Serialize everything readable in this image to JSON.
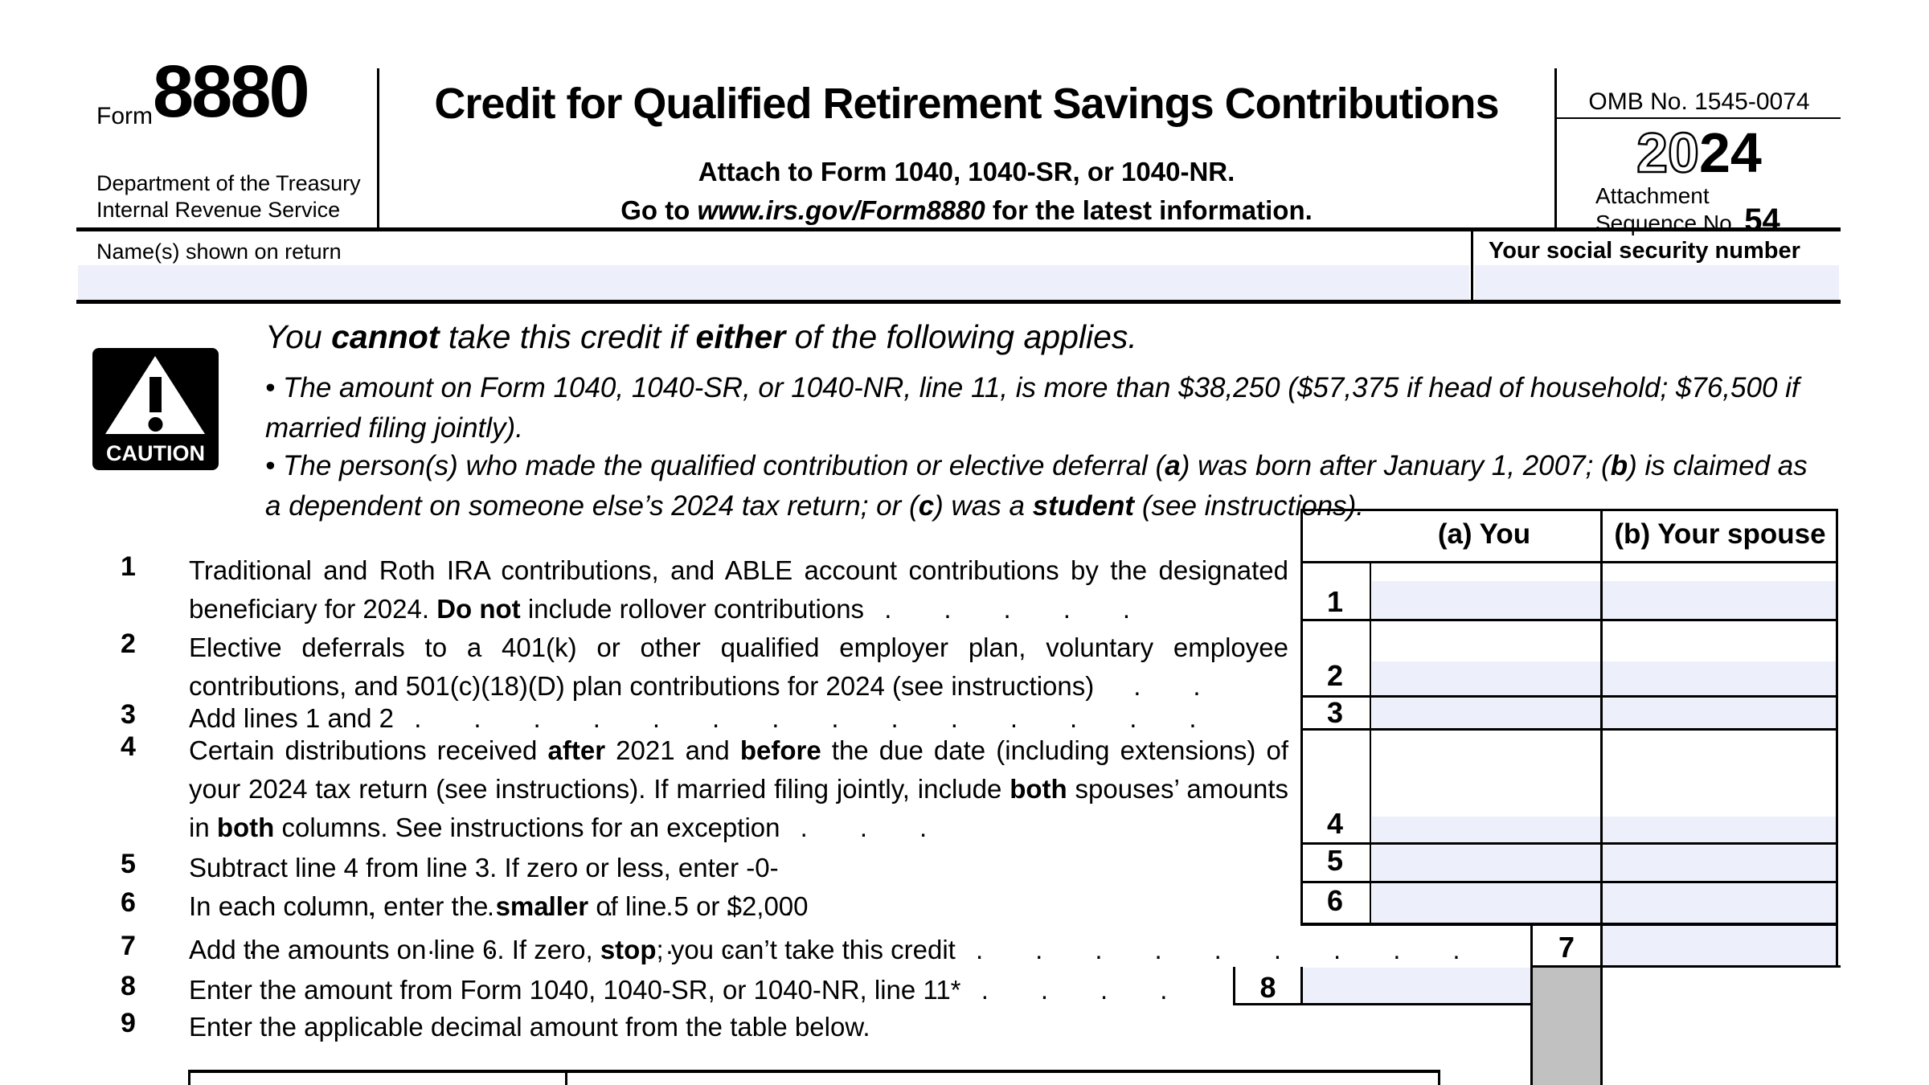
{
  "header": {
    "form_label": "Form",
    "form_number": "8880",
    "agency_line1": "Department of the Treasury",
    "agency_line2": "Internal Revenue Service",
    "title": "Credit for Qualified Retirement Savings Contributions",
    "attach_line": "Attach to Form 1040, 1040-SR, or 1040-NR.",
    "goto_prefix": "Go to ",
    "goto_url": "www.irs.gov/Form8880",
    "goto_suffix": " for the latest information.",
    "omb": "OMB No. 1545-0074",
    "year_outline": "20",
    "year_bold": "24",
    "attachment_label": "Attachment",
    "sequence_label": "Sequence No. ",
    "sequence_number": "54"
  },
  "name_row": {
    "name_label": "Name(s) shown on return",
    "ssn_label": "Your social security number"
  },
  "caution": {
    "icon_label": "CAUTION",
    "heading": [
      {
        "t": "You "
      },
      {
        "t": "cannot",
        "b": true
      },
      {
        "t": " take this credit if "
      },
      {
        "t": "either",
        "b": true
      },
      {
        "t": " of the following applies."
      }
    ],
    "bullet1": [
      {
        "t": "• The amount on Form 1040, 1040-SR, or 1040-NR, line 11, is more than $38,250 ($57,375 if head of household; $76,500 if married filing jointly)."
      }
    ],
    "bullet2": [
      {
        "t": "• The person(s) who made the qualified contribution or elective deferral ("
      },
      {
        "t": "a",
        "b": true
      },
      {
        "t": ") was born after January 1, 2007; ("
      },
      {
        "t": "b",
        "b": true
      },
      {
        "t": ") is claimed as a dependent on someone else’s 2024 tax return; or ("
      },
      {
        "t": "c",
        "b": true
      },
      {
        "t": ") was a "
      },
      {
        "t": "student",
        "b": true
      },
      {
        "t": " (see instructions)."
      }
    ]
  },
  "table": {
    "col_a": "(a) You",
    "col_b": "(b) Your spouse",
    "box_numbers": {
      "r1": "1",
      "r2": "2",
      "r3": "3",
      "r4": "4",
      "r5": "5",
      "r6": "6",
      "r7": "7",
      "r8": "8"
    }
  },
  "items": [
    {
      "num": "1",
      "text": [
        {
          "t": "Traditional and Roth IRA contributions, and ABLE account contributions by the designated beneficiary for 2024. "
        },
        {
          "t": "Do not",
          "b": true
        },
        {
          "t": " include rollover contributions"
        },
        {
          "t": " . . . . .",
          "l": true
        }
      ]
    },
    {
      "num": "2",
      "text": [
        {
          "t": "Elective deferrals to a 401(k) or other qualified employer plan, voluntary employee contributions, and 501(c)(18)(D) plan contributions for 2024 (see instructions)"
        },
        {
          "t": " . .",
          "l": true
        }
      ]
    },
    {
      "num": "3",
      "text": [
        {
          "t": "Add lines 1 and 2"
        },
        {
          "t": " . . . . . . . . . . . . . .",
          "l": true
        }
      ]
    },
    {
      "num": "4",
      "text": [
        {
          "t": "Certain distributions received "
        },
        {
          "t": "after",
          "b": true
        },
        {
          "t": " 2021 and "
        },
        {
          "t": "before",
          "b": true
        },
        {
          "t": " the due date (including extensions) of your 2024 tax return (see instructions). If married filing jointly, include "
        },
        {
          "t": "both",
          "b": true
        },
        {
          "t": " spouses’ amounts in "
        },
        {
          "t": "both",
          "b": true
        },
        {
          "t": " columns. See instructions for an exception"
        },
        {
          "t": " . . .",
          "l": true
        }
      ]
    },
    {
      "num": "5",
      "text": [
        {
          "t": "Subtract line 4 from line 3. If zero or less, enter -0-"
        },
        {
          "t": " . . . . . . . . . . .",
          "l": true
        }
      ]
    },
    {
      "num": "6",
      "text": [
        {
          "t": "In each column, enter the "
        },
        {
          "t": "smaller",
          "b": true
        },
        {
          "t": " of line 5 or $2,000"
        },
        {
          "t": " . . . . . . . . . .",
          "l": true
        }
      ]
    },
    {
      "num": "7",
      "text": [
        {
          "t": "Add the amounts on line 6. If zero, "
        },
        {
          "t": "stop",
          "b": true
        },
        {
          "t": "; you can’t take this credit"
        },
        {
          "t": " . . . . . . . . .",
          "l": true
        }
      ]
    },
    {
      "num": "8",
      "text": [
        {
          "t": "Enter the amount from Form 1040, 1040-SR, or 1040-NR, line 11*"
        },
        {
          "t": " . . . .",
          "l": true
        }
      ]
    },
    {
      "num": "9",
      "text": [
        {
          "t": "Enter the applicable decimal amount from the table below."
        }
      ]
    }
  ]
}
